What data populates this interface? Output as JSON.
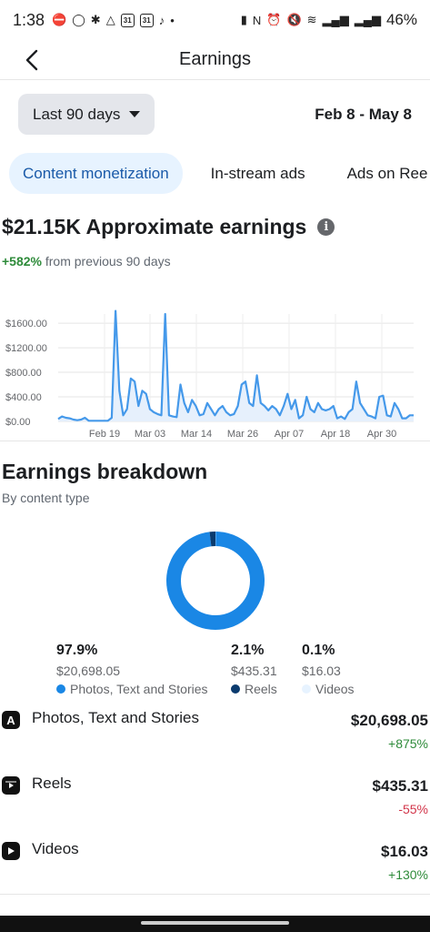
{
  "status_bar": {
    "time": "1:38",
    "battery": "46%"
  },
  "header": {
    "title": "Earnings"
  },
  "filters": {
    "range_label": "Last 90 days",
    "date_range": "Feb 8 - May 8"
  },
  "tabs": [
    {
      "label": "Content monetization",
      "active": true
    },
    {
      "label": "In-stream ads",
      "active": false
    },
    {
      "label": "Ads on Ree",
      "active": false
    }
  ],
  "summary": {
    "amount_title": "$21.15K Approximate earnings",
    "change_pct": "+582%",
    "change_suffix": " from previous 90 days"
  },
  "chart_data": {
    "type": "area",
    "y_ticks": [
      "$1600.00",
      "$1200.00",
      "$800.00",
      "$400.00",
      "$0.00"
    ],
    "x_ticks": [
      "Feb 19",
      "Mar 03",
      "Mar 14",
      "Mar 26",
      "Apr 07",
      "Apr 18",
      "Apr 30"
    ],
    "ylim": [
      0,
      1750
    ],
    "grid": true,
    "color": "#4599ea",
    "values": [
      40,
      80,
      60,
      50,
      30,
      20,
      30,
      60,
      10,
      10,
      10,
      10,
      10,
      10,
      60,
      1800,
      500,
      100,
      200,
      700,
      650,
      250,
      500,
      450,
      200,
      150,
      120,
      100,
      1750,
      100,
      80,
      70,
      600,
      300,
      150,
      350,
      250,
      100,
      120,
      300,
      200,
      100,
      200,
      250,
      150,
      100,
      120,
      250,
      600,
      650,
      300,
      250,
      750,
      300,
      250,
      180,
      250,
      200,
      100,
      250,
      450,
      200,
      350,
      50,
      100,
      400,
      200,
      150,
      300,
      200,
      180,
      200,
      250,
      50,
      80,
      40,
      150,
      200,
      650,
      300,
      200,
      100,
      80,
      50,
      400,
      420,
      100,
      80,
      300,
      200,
      50,
      50,
      100,
      100
    ]
  },
  "breakdown": {
    "title": "Earnings breakdown",
    "subtitle": "By content type",
    "legend": [
      {
        "pct": "97.9%",
        "value": "$20,698.05",
        "name": "Photos, Text and Stories",
        "color": "#1a87e5",
        "share": 97.9
      },
      {
        "pct": "2.1%",
        "value": "$435.31",
        "name": "Reels",
        "color": "#0b3b6e",
        "share": 2.1
      },
      {
        "pct": "0.1%",
        "value": "$16.03",
        "name": "Videos",
        "color": "#e7f3ff",
        "share": 0.1
      }
    ],
    "rows": [
      {
        "label": "Photos, Text and Stories",
        "amount": "$20,698.05",
        "change": "+875%",
        "positive": true,
        "icon": "photos-text-stories-icon"
      },
      {
        "label": "Reels",
        "amount": "$435.31",
        "change": "-55%",
        "positive": false,
        "icon": "reels-icon"
      },
      {
        "label": "Videos",
        "amount": "$16.03",
        "change": "+130%",
        "positive": true,
        "icon": "videos-icon"
      }
    ]
  }
}
